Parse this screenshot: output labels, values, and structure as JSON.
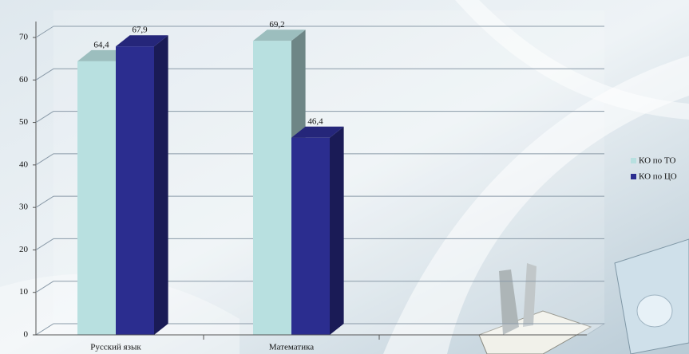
{
  "chart_data": {
    "type": "bar3d",
    "categories": [
      "Русский язык",
      "Математика"
    ],
    "series": [
      {
        "name": "КО по ТО",
        "color": "#b8e0e0",
        "values": [
          64.4,
          69.2
        ],
        "value_labels": [
          "64,4",
          "69,2"
        ]
      },
      {
        "name": "КО по ЦО",
        "color": "#2b2d8f",
        "values": [
          67.9,
          46.4
        ],
        "value_labels": [
          "67,9",
          "46,4"
        ]
      }
    ],
    "ylim": [
      0,
      70
    ],
    "yticks": [
      0,
      10,
      20,
      30,
      40,
      50,
      60,
      70
    ],
    "grid": true,
    "legend": "right"
  }
}
